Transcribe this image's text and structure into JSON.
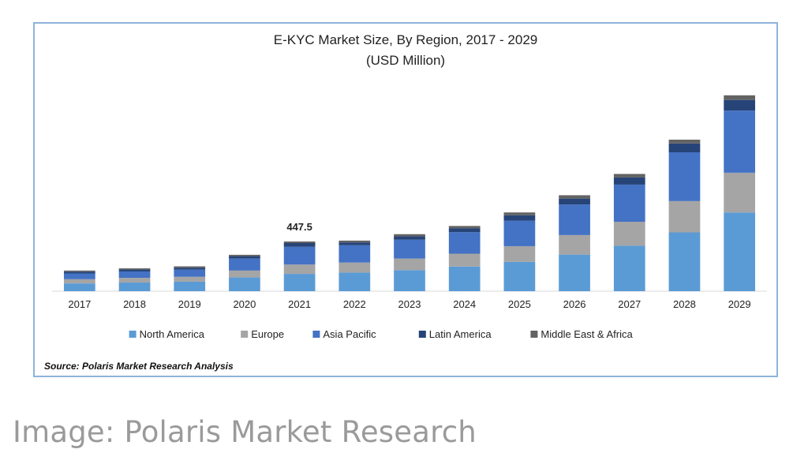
{
  "chart_data": {
    "type": "bar",
    "stacked": true,
    "title": "E-KYC Market Size, By Region, 2017 - 2029",
    "subtitle": "(USD Million)",
    "categories": [
      "2017",
      "2018",
      "2019",
      "2020",
      "2021",
      "2022",
      "2023",
      "2024",
      "2025",
      "2026",
      "2027",
      "2028",
      "2029"
    ],
    "series": [
      {
        "name": "North America",
        "color": "#5b9bd5",
        "values": [
          70,
          78,
          86,
          124,
          156,
          168,
          190,
          222,
          264,
          330,
          410,
          530,
          710
        ]
      },
      {
        "name": "Europe",
        "color": "#a5a5a5",
        "values": [
          38,
          42,
          44,
          62,
          84,
          90,
          104,
          116,
          142,
          176,
          216,
          282,
          358
        ]
      },
      {
        "name": "Asia Pacific",
        "color": "#4472c4",
        "values": [
          52,
          58,
          64,
          108,
          160,
          156,
          170,
          194,
          230,
          275,
          335,
          440,
          560
        ]
      },
      {
        "name": "Latin America",
        "color": "#264478",
        "values": [
          16,
          17,
          18,
          22,
          34,
          26,
          30,
          34,
          48,
          54,
          64,
          80,
          96
        ]
      },
      {
        "name": "Middle East & Africa",
        "color": "#636363",
        "values": [
          10,
          11,
          12,
          12,
          14,
          16,
          20,
          22,
          26,
          30,
          32,
          34,
          42
        ]
      }
    ],
    "annotations": [
      {
        "category": "2021",
        "text": "447.5"
      }
    ],
    "ylim": [
      0,
      1800
    ],
    "grid": false,
    "legend": "bottom",
    "source": "Source: Polaris Market Research Analysis"
  },
  "caption": "Image: Polaris Market Research"
}
